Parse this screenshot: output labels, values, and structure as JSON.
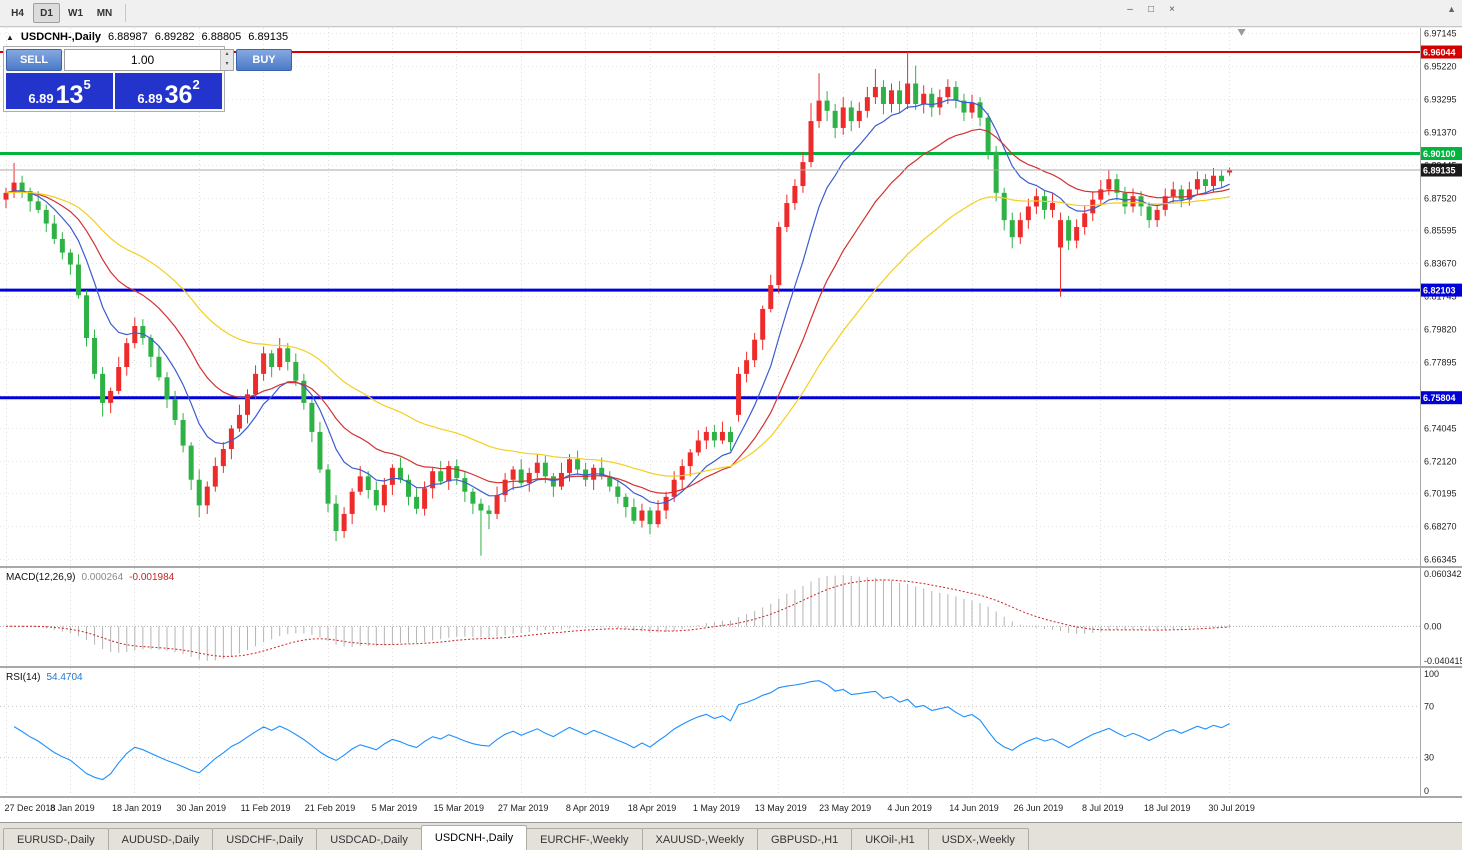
{
  "toolbar": {
    "periods": [
      {
        "label": "H4",
        "active": false
      },
      {
        "label": "D1",
        "active": true
      },
      {
        "label": "W1",
        "active": false
      },
      {
        "label": "MN",
        "active": false
      }
    ]
  },
  "icons": {
    "minimize": "–",
    "restore": "□",
    "close": "×",
    "collapse": "▲",
    "panel_toggle": "▲",
    "spin_up": "▴",
    "spin_down": "▾"
  },
  "chart_header": {
    "symbol": "USDCNH-,Daily",
    "open": "6.88987",
    "high": "6.89282",
    "low": "6.88805",
    "close": "6.89135"
  },
  "one_click": {
    "sell_label": "SELL",
    "buy_label": "BUY",
    "volume": "1.00",
    "bid_prefix": "6.89",
    "bid_big": "13",
    "bid_sup": "5",
    "ask_prefix": "6.89",
    "ask_big": "36",
    "ask_sup": "2"
  },
  "tabs": [
    {
      "label": "EURUSD-,Daily",
      "active": false
    },
    {
      "label": "AUDUSD-,Daily",
      "active": false
    },
    {
      "label": "USDCHF-,Daily",
      "active": false
    },
    {
      "label": "USDCAD-,Daily",
      "active": false
    },
    {
      "label": "USDCNH-,Daily",
      "active": true
    },
    {
      "label": "EURCHF-,Weekly",
      "active": false
    },
    {
      "label": "XAUUSD-,Weekly",
      "active": false
    },
    {
      "label": "GBPUSD-,H1",
      "active": false
    },
    {
      "label": "UKOil-,H1",
      "active": false
    },
    {
      "label": "USDX-,Weekly",
      "active": false
    }
  ],
  "chart_data": {
    "type": "candlestick",
    "symbol": "USDCNH-",
    "timeframe": "Daily",
    "ohlc_display": [
      "6.88987",
      "6.89282",
      "6.88805",
      "6.89135"
    ],
    "colors": {
      "bull": "#ee2b2b",
      "bear": "#2fb245",
      "grid": "#dcdcdc",
      "background": "#ffffff"
    },
    "price_axis": {
      "min": 6.6595,
      "max": 6.9745,
      "ticks": [
        "6.97145",
        "6.95220",
        "6.93295",
        "6.91370",
        "6.89445",
        "6.87520",
        "6.85595",
        "6.83670",
        "6.81745",
        "6.79820",
        "6.77895",
        "6.75970",
        "6.74045",
        "6.72120",
        "6.70195",
        "6.68270",
        "6.66345"
      ]
    },
    "x_labels": [
      "27 Dec 2018",
      "8 Jan 2019",
      "18 Jan 2019",
      "30 Jan 2019",
      "11 Feb 2019",
      "21 Feb 2019",
      "5 Mar 2019",
      "15 Mar 2019",
      "27 Mar 2019",
      "8 Apr 2019",
      "18 Apr 2019",
      "1 May 2019",
      "13 May 2019",
      "23 May 2019",
      "4 Jun 2019",
      "14 Jun 2019",
      "26 Jun 2019",
      "8 Jul 2019",
      "18 Jul 2019",
      "30 Jul 2019"
    ],
    "x_label_every": 8,
    "hlines": [
      {
        "value": 6.96044,
        "label": "6.96044",
        "color": "#d40000",
        "width": 2
      },
      {
        "value": 6.901,
        "label": "6.90100",
        "color": "#00b43c",
        "width": 3
      },
      {
        "value": 6.82103,
        "label": "6.82103",
        "color": "#0000d8",
        "width": 3
      },
      {
        "value": 6.75804,
        "label": "6.75804",
        "color": "#0000d8",
        "width": 3
      }
    ],
    "current_price": {
      "value": 6.89135,
      "label": "6.89135",
      "line_color": "#aaaaaa",
      "label_bg": "#1a1a1a"
    },
    "moving_averages": [
      {
        "name": "fast",
        "period": 9,
        "color": "#3b5bd0"
      },
      {
        "name": "medium",
        "period": 20,
        "color": "#d43030"
      },
      {
        "name": "slow",
        "period": 40,
        "color": "#f2cf1f"
      }
    ],
    "indicators": {
      "macd": {
        "label": "MACD(12,26,9)",
        "value_main": "0.000264",
        "value_signal": "-0.001984",
        "params": [
          12,
          26,
          9
        ],
        "axis_labels": [
          "0.060342",
          "0.00",
          "-0.040415"
        ],
        "scale_max": 0.0625,
        "scale_min": -0.0425,
        "hist_color": "#b4b4b4",
        "signal_color": "#cc2222"
      },
      "rsi": {
        "label": "RSI(14)",
        "value": "54.4704",
        "period": 14,
        "levels": [
          70,
          30
        ],
        "axis_labels": [
          "100",
          "70",
          "30",
          "0"
        ],
        "color": "#1e90ff"
      }
    },
    "candles": [
      [
        6.874,
        6.881,
        6.869,
        6.878
      ],
      [
        6.878,
        6.8955,
        6.875,
        6.884
      ],
      [
        6.884,
        6.888,
        6.875,
        6.879
      ],
      [
        6.879,
        6.881,
        6.867,
        6.873
      ],
      [
        6.873,
        6.879,
        6.866,
        6.868
      ],
      [
        6.868,
        6.871,
        6.855,
        6.86
      ],
      [
        6.86,
        6.865,
        6.848,
        6.851
      ],
      [
        6.851,
        6.855,
        6.839,
        6.843
      ],
      [
        6.843,
        6.845,
        6.83,
        6.836
      ],
      [
        6.836,
        6.842,
        6.816,
        6.818
      ],
      [
        6.818,
        6.821,
        6.788,
        6.793
      ],
      [
        6.793,
        6.798,
        6.769,
        6.772
      ],
      [
        6.772,
        6.776,
        6.747,
        6.755
      ],
      [
        6.755,
        6.764,
        6.749,
        6.762
      ],
      [
        6.762,
        6.782,
        6.76,
        6.776
      ],
      [
        6.776,
        6.793,
        6.771,
        6.79
      ],
      [
        6.79,
        6.805,
        6.787,
        6.8
      ],
      [
        6.8,
        6.804,
        6.789,
        6.793
      ],
      [
        6.793,
        6.795,
        6.776,
        6.782
      ],
      [
        6.782,
        6.788,
        6.768,
        6.77
      ],
      [
        6.77,
        6.773,
        6.752,
        6.757
      ],
      [
        6.757,
        6.762,
        6.742,
        6.745
      ],
      [
        6.745,
        6.749,
        6.726,
        6.73
      ],
      [
        6.73,
        6.732,
        6.704,
        6.71
      ],
      [
        6.71,
        6.716,
        6.688,
        6.695
      ],
      [
        6.695,
        6.709,
        6.69,
        6.706
      ],
      [
        6.706,
        6.723,
        6.703,
        6.718
      ],
      [
        6.718,
        6.732,
        6.714,
        6.728
      ],
      [
        6.728,
        6.742,
        6.722,
        6.74
      ],
      [
        6.74,
        6.754,
        6.738,
        6.748
      ],
      [
        6.748,
        6.763,
        6.743,
        6.76
      ],
      [
        6.76,
        6.777,
        6.757,
        6.772
      ],
      [
        6.772,
        6.788,
        6.768,
        6.784
      ],
      [
        6.784,
        6.786,
        6.77,
        6.776
      ],
      [
        6.776,
        6.793,
        6.774,
        6.787
      ],
      [
        6.787,
        6.79,
        6.774,
        6.779
      ],
      [
        6.779,
        6.784,
        6.765,
        6.768
      ],
      [
        6.768,
        6.772,
        6.751,
        6.755
      ],
      [
        6.755,
        6.757,
        6.732,
        6.738
      ],
      [
        6.738,
        6.744,
        6.714,
        6.716
      ],
      [
        6.716,
        6.719,
        6.691,
        6.696
      ],
      [
        6.696,
        6.701,
        6.674,
        6.68
      ],
      [
        6.68,
        6.694,
        6.676,
        6.69
      ],
      [
        6.69,
        6.705,
        6.684,
        6.703
      ],
      [
        6.703,
        6.718,
        6.701,
        6.712
      ],
      [
        6.712,
        6.715,
        6.699,
        6.704
      ],
      [
        6.704,
        6.709,
        6.692,
        6.695
      ],
      [
        6.695,
        6.711,
        6.691,
        6.707
      ],
      [
        6.707,
        6.719,
        6.701,
        6.717
      ],
      [
        6.717,
        6.723,
        6.708,
        6.71
      ],
      [
        6.71,
        6.713,
        6.695,
        6.7
      ],
      [
        6.7,
        6.705,
        6.69,
        6.693
      ],
      [
        6.693,
        6.709,
        6.689,
        6.705
      ],
      [
        6.705,
        6.717,
        6.699,
        6.715
      ],
      [
        6.715,
        6.721,
        6.707,
        6.709
      ],
      [
        6.709,
        6.721,
        6.704,
        6.718
      ],
      [
        6.718,
        6.722,
        6.707,
        6.711
      ],
      [
        6.711,
        6.715,
        6.697,
        6.703
      ],
      [
        6.703,
        6.705,
        6.69,
        6.696
      ],
      [
        6.696,
        6.699,
        6.6655,
        6.692
      ],
      [
        6.692,
        6.695,
        6.681,
        6.69
      ],
      [
        6.69,
        6.706,
        6.687,
        6.701
      ],
      [
        6.701,
        6.714,
        6.697,
        6.71
      ],
      [
        6.71,
        6.718,
        6.704,
        6.716
      ],
      [
        6.716,
        6.722,
        6.706,
        6.708
      ],
      [
        6.708,
        6.717,
        6.703,
        6.714
      ],
      [
        6.714,
        6.725,
        6.711,
        6.72
      ],
      [
        6.72,
        6.724,
        6.708,
        6.712
      ],
      [
        6.712,
        6.714,
        6.7,
        6.706
      ],
      [
        6.706,
        6.72,
        6.704,
        6.714
      ],
      [
        6.714,
        6.725,
        6.709,
        6.722
      ],
      [
        6.722,
        6.727,
        6.713,
        6.716
      ],
      [
        6.716,
        6.72,
        6.706,
        6.71
      ],
      [
        6.71,
        6.719,
        6.704,
        6.717
      ],
      [
        6.717,
        6.723,
        6.71,
        6.712
      ],
      [
        6.712,
        6.715,
        6.703,
        6.706
      ],
      [
        6.706,
        6.71,
        6.696,
        6.7
      ],
      [
        6.7,
        6.702,
        6.688,
        6.694
      ],
      [
        6.694,
        6.699,
        6.684,
        6.686
      ],
      [
        6.686,
        6.696,
        6.682,
        6.692
      ],
      [
        6.692,
        6.694,
        6.678,
        6.684
      ],
      [
        6.684,
        6.698,
        6.682,
        6.692
      ],
      [
        6.692,
        6.703,
        6.687,
        6.7
      ],
      [
        6.7,
        6.715,
        6.697,
        6.71
      ],
      [
        6.71,
        6.722,
        6.704,
        6.718
      ],
      [
        6.718,
        6.728,
        6.712,
        6.726
      ],
      [
        6.726,
        6.739,
        6.724,
        6.733
      ],
      [
        6.733,
        6.741,
        6.728,
        6.738
      ],
      [
        6.738,
        6.742,
        6.729,
        6.733
      ],
      [
        6.733,
        6.744,
        6.731,
        6.738
      ],
      [
        6.738,
        6.741,
        6.727,
        6.732
      ],
      [
        6.748,
        6.776,
        6.744,
        6.772
      ],
      [
        6.772,
        6.785,
        6.767,
        6.78
      ],
      [
        6.78,
        6.796,
        6.776,
        6.792
      ],
      [
        6.792,
        6.812,
        6.786,
        6.81
      ],
      [
        6.81,
        6.83,
        6.808,
        6.824
      ],
      [
        6.824,
        6.861,
        6.819,
        6.858
      ],
      [
        6.858,
        6.877,
        6.855,
        6.872
      ],
      [
        6.872,
        6.886,
        6.868,
        6.882
      ],
      [
        6.882,
        6.902,
        6.878,
        6.896
      ],
      [
        6.896,
        6.9305,
        6.893,
        6.92
      ],
      [
        6.92,
        6.948,
        6.916,
        6.932
      ],
      [
        6.932,
        6.9375,
        6.92,
        6.926
      ],
      [
        6.926,
        6.93,
        6.91,
        6.916
      ],
      [
        6.916,
        6.934,
        6.912,
        6.928
      ],
      [
        6.928,
        6.932,
        6.914,
        6.92
      ],
      [
        6.92,
        6.931,
        6.916,
        6.926
      ],
      [
        6.926,
        6.94,
        6.922,
        6.934
      ],
      [
        6.934,
        6.9505,
        6.93,
        6.94
      ],
      [
        6.94,
        6.944,
        6.924,
        6.93
      ],
      [
        6.93,
        6.942,
        6.925,
        6.938
      ],
      [
        6.938,
        6.9435,
        6.9245,
        6.93
      ],
      [
        6.93,
        6.9605,
        6.927,
        6.942
      ],
      [
        6.942,
        6.9525,
        6.9265,
        6.93
      ],
      [
        6.93,
        6.941,
        6.9245,
        6.936
      ],
      [
        6.936,
        6.9395,
        6.9225,
        6.928
      ],
      [
        6.928,
        6.9385,
        6.9235,
        6.934
      ],
      [
        6.934,
        6.9445,
        6.93,
        6.94
      ],
      [
        6.94,
        6.9435,
        6.9275,
        6.932
      ],
      [
        6.932,
        6.936,
        6.92,
        6.925
      ],
      [
        6.925,
        6.9355,
        6.9215,
        6.931
      ],
      [
        6.931,
        6.934,
        6.917,
        6.922
      ],
      [
        6.922,
        6.9245,
        6.8975,
        6.902
      ],
      [
        6.902,
        6.9055,
        6.873,
        6.878
      ],
      [
        6.878,
        6.881,
        6.856,
        6.862
      ],
      [
        6.862,
        6.8665,
        6.8455,
        6.852
      ],
      [
        6.852,
        6.8665,
        6.848,
        6.862
      ],
      [
        6.862,
        6.8745,
        6.857,
        6.87
      ],
      [
        6.87,
        6.8805,
        6.8655,
        6.876
      ],
      [
        6.876,
        6.879,
        6.8625,
        6.868
      ],
      [
        6.868,
        6.8775,
        6.8635,
        6.872
      ],
      [
        6.846,
        6.8665,
        6.8172,
        6.862
      ],
      [
        6.862,
        6.8645,
        6.8445,
        6.85
      ],
      [
        6.85,
        6.8625,
        6.8455,
        6.858
      ],
      [
        6.858,
        6.8705,
        6.8535,
        6.866
      ],
      [
        6.866,
        6.8785,
        6.8615,
        6.874
      ],
      [
        6.874,
        6.8855,
        6.8705,
        6.88
      ],
      [
        6.88,
        6.8915,
        6.8765,
        6.886
      ],
      [
        6.886,
        6.889,
        6.8735,
        6.878
      ],
      [
        6.878,
        6.8815,
        6.8655,
        6.87
      ],
      [
        6.87,
        6.8805,
        6.8665,
        6.876
      ],
      [
        6.876,
        6.879,
        6.8645,
        6.87
      ],
      [
        6.87,
        6.8725,
        6.8575,
        6.862
      ],
      [
        6.862,
        6.8715,
        6.858,
        6.868
      ],
      [
        6.868,
        6.8805,
        6.8645,
        6.876
      ],
      [
        6.876,
        6.8845,
        6.872,
        6.88
      ],
      [
        6.88,
        6.8825,
        6.8695,
        6.874
      ],
      [
        6.874,
        6.8845,
        6.8705,
        6.88
      ],
      [
        6.88,
        6.8905,
        6.8765,
        6.886
      ],
      [
        6.886,
        6.889,
        6.8775,
        6.882
      ],
      [
        6.882,
        6.8925,
        6.8785,
        6.888
      ],
      [
        6.888,
        6.8912,
        6.8808,
        6.8848
      ],
      [
        6.88987,
        6.89282,
        6.88805,
        6.89135
      ]
    ]
  }
}
